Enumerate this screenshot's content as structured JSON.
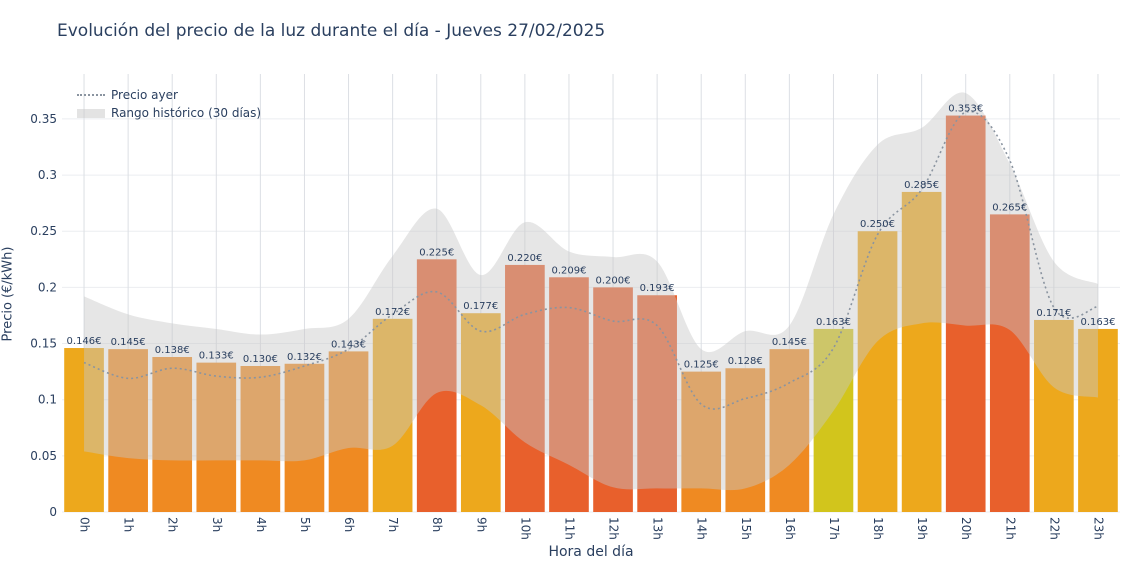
{
  "chart_data": {
    "type": "bar",
    "title": "Evolución del precio de la luz durante el día - Jueves 27/02/2025",
    "xlabel": "Hora del día",
    "ylabel": "Precio (€/kWh)",
    "categories": [
      "0h",
      "1h",
      "2h",
      "3h",
      "4h",
      "5h",
      "6h",
      "7h",
      "8h",
      "9h",
      "10h",
      "11h",
      "12h",
      "13h",
      "14h",
      "15h",
      "16h",
      "17h",
      "18h",
      "19h",
      "20h",
      "21h",
      "22h",
      "23h"
    ],
    "series": [
      {
        "values": [
          0.146,
          0.145,
          0.138,
          0.133,
          0.13,
          0.132,
          0.143,
          0.172,
          0.225,
          0.177,
          0.22,
          0.209,
          0.2,
          0.193,
          0.125,
          0.128,
          0.145,
          0.163,
          0.25,
          0.285,
          0.353,
          0.265,
          0.171,
          0.163
        ],
        "labels": [
          "0.146€",
          "0.145€",
          "0.138€",
          "0.133€",
          "0.130€",
          "0.132€",
          "0.143€",
          "0.172€",
          "0.225€",
          "0.177€",
          "0.220€",
          "0.209€",
          "0.200€",
          "0.193€",
          "0.125€",
          "0.128€",
          "0.145€",
          "0.163€",
          "0.250€",
          "0.285€",
          "0.353€",
          "0.265€",
          "0.171€",
          "0.163€"
        ]
      },
      {
        "name": "Precio ayer",
        "type": "line",
        "values": [
          0.133,
          0.119,
          0.128,
          0.121,
          0.12,
          0.13,
          0.145,
          0.176,
          0.196,
          0.161,
          0.176,
          0.182,
          0.17,
          0.166,
          0.096,
          0.101,
          0.115,
          0.146,
          0.247,
          0.287,
          0.356,
          0.313,
          0.182,
          0.183
        ]
      },
      {
        "name": "Rango histórico (30 días)",
        "type": "band",
        "lower": [
          0.054,
          0.048,
          0.046,
          0.046,
          0.046,
          0.046,
          0.057,
          0.059,
          0.106,
          0.095,
          0.062,
          0.042,
          0.022,
          0.021,
          0.021,
          0.021,
          0.042,
          0.09,
          0.152,
          0.168,
          0.166,
          0.162,
          0.111,
          0.102
        ],
        "upper": [
          0.192,
          0.176,
          0.168,
          0.163,
          0.158,
          0.163,
          0.172,
          0.228,
          0.27,
          0.211,
          0.258,
          0.232,
          0.227,
          0.223,
          0.145,
          0.161,
          0.166,
          0.265,
          0.327,
          0.342,
          0.373,
          0.31,
          0.223,
          0.203
        ]
      }
    ],
    "colors": {
      "bar_low": "#d2c51c",
      "bar_mid": "#eda81c",
      "bar_orange": "#ef8a22",
      "bar_high": "#e8602c",
      "line": "#8a94a0",
      "band": "#c8c8c8"
    },
    "ylim": [
      0,
      0.39
    ],
    "yticks": [
      0,
      0.05,
      0.1,
      0.15,
      0.2,
      0.25,
      0.3,
      0.35
    ],
    "ytick_labels": [
      "0",
      "0.05",
      "0.1",
      "0.15",
      "0.2",
      "0.25",
      "0.3",
      "0.35"
    ],
    "grid": true,
    "legend": "top-left"
  }
}
